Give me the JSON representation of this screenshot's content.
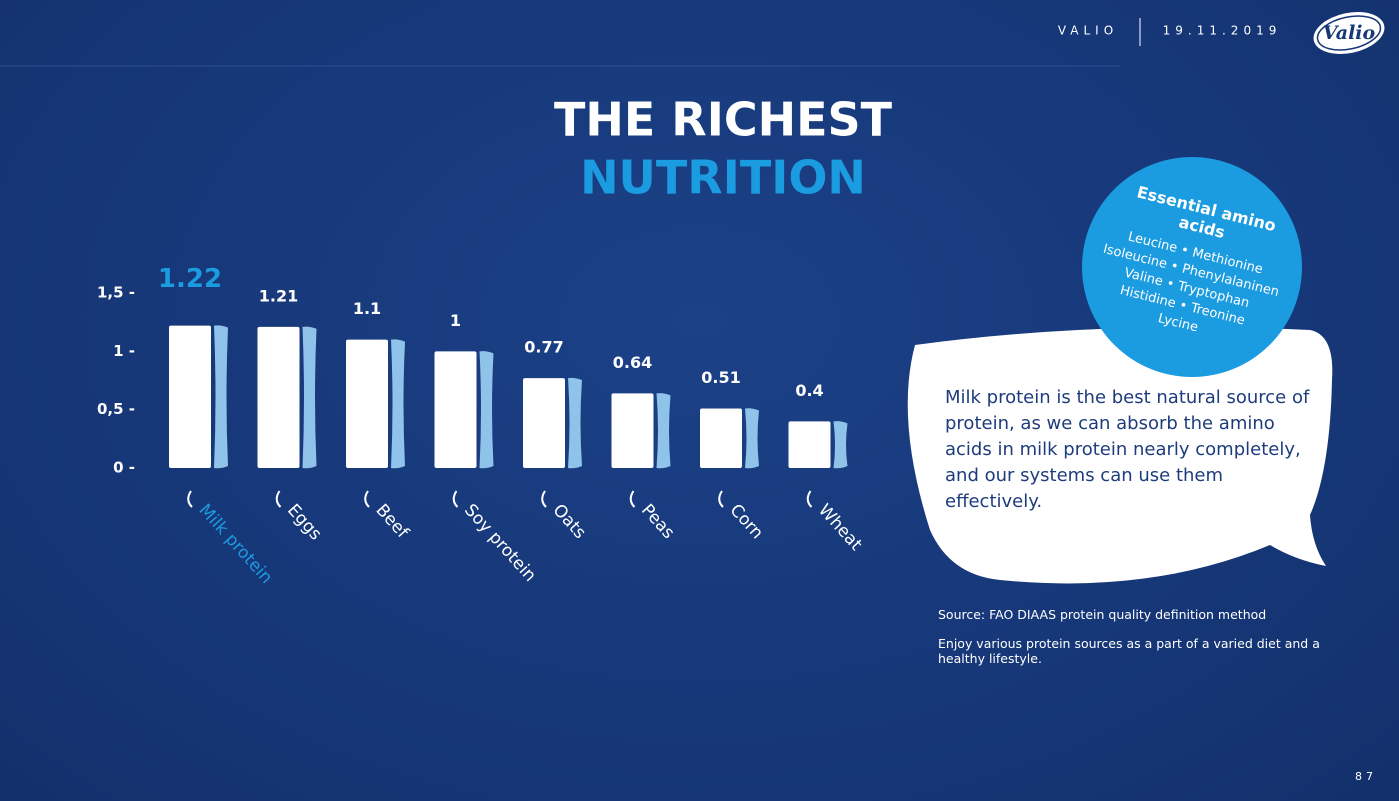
{
  "header": {
    "brand": "VALIO",
    "date": "19.11.2019",
    "logo": "Valio"
  },
  "chart_data": {
    "type": "bar",
    "title": "THE RICHEST",
    "subtitle": "NUTRITION",
    "categories": [
      "Milk protein",
      "Eggs",
      "Beef",
      "Soy protein",
      "Oats",
      "Peas",
      "Corn",
      "Wheat"
    ],
    "values": [
      1.22,
      1.21,
      1.1,
      1,
      0.77,
      0.64,
      0.51,
      0.4
    ],
    "color": "#ffffff",
    "side_color": "#8fc3ea",
    "highlight_color": "#1b9be0",
    "ylim": [
      0,
      1.5
    ],
    "yticks": [
      {
        "value": 0,
        "label": "0 -"
      },
      {
        "value": 0.5,
        "label": "0,5 -"
      },
      {
        "value": 1,
        "label": "1 -"
      },
      {
        "value": 1.5,
        "label": "1,5 -"
      }
    ],
    "grid": false
  },
  "bubble": {
    "title_lines": [
      "Essential amino",
      "acids"
    ],
    "lines": [
      "Leucine • Methionine",
      "Isoleucine • Phenylalaninen",
      "Valine • Tryptophan",
      "Histidine • Treonine",
      "Lycine"
    ]
  },
  "callout": "Milk protein is the best natural source of protein, as we can absorb the amino acids in milk protein nearly completely, and our systems can use them effectively.",
  "notes": [
    "Source: FAO DIAAS protein quality definition method",
    "Enjoy various protein sources as a part of a varied diet and a healthy lifestyle."
  ],
  "page_number": "87"
}
